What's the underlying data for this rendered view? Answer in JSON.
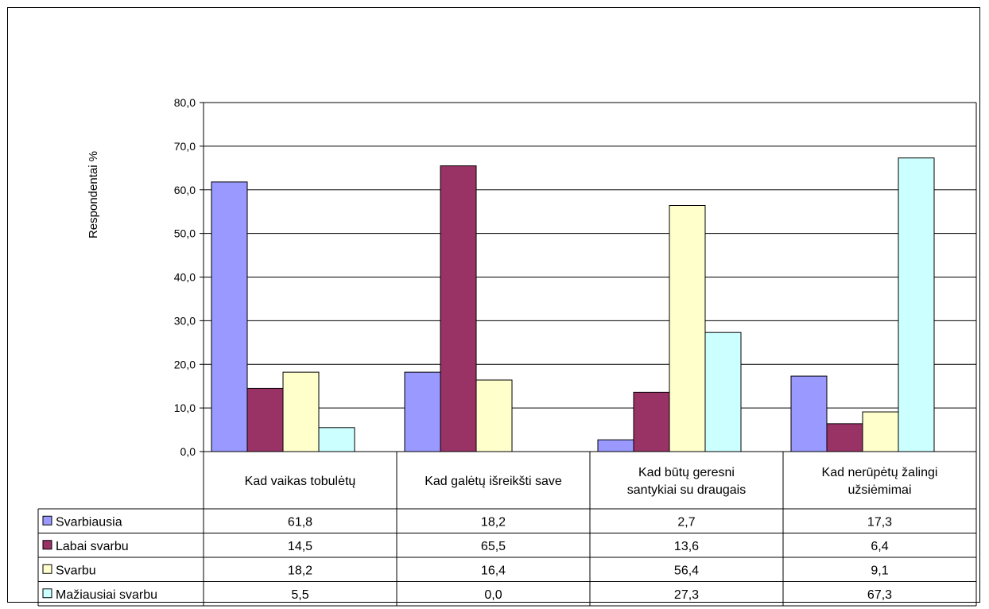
{
  "chart_data": {
    "type": "bar",
    "title": "",
    "xlabel": "",
    "ylabel": "Respondentai %",
    "ylim": [
      0,
      80
    ],
    "y_ticks": [
      "0,0",
      "10,0",
      "20,0",
      "30,0",
      "40,0",
      "50,0",
      "60,0",
      "70,0",
      "80,0"
    ],
    "grid": true,
    "legend": "data-table",
    "categories": [
      [
        "Kad vaikas tobulėtų"
      ],
      [
        "Kad galėtų išreikšti save"
      ],
      [
        "Kad būtų geresni",
        "santykiai su draugais"
      ],
      [
        "Kad nerūpėtų žalingi",
        "užsiėmimai"
      ]
    ],
    "series": [
      {
        "name": "Svarbiausia",
        "color": "#9999ff",
        "values": [
          61.8,
          18.2,
          2.7,
          17.3
        ],
        "labels": [
          "61,8",
          "18,2",
          "2,7",
          "17,3"
        ]
      },
      {
        "name": "Labai svarbu",
        "color": "#993366",
        "values": [
          14.5,
          65.5,
          13.6,
          6.4
        ],
        "labels": [
          "14,5",
          "65,5",
          "13,6",
          "6,4"
        ]
      },
      {
        "name": "Svarbu",
        "color": "#ffffcc",
        "values": [
          18.2,
          16.4,
          56.4,
          9.1
        ],
        "labels": [
          "18,2",
          "16,4",
          "56,4",
          "9,1"
        ]
      },
      {
        "name": "Mažiausiai svarbu",
        "color": "#ccffff",
        "values": [
          5.5,
          0.0,
          27.3,
          67.3
        ],
        "labels": [
          "5,5",
          "0,0",
          "27,3",
          "67,3"
        ]
      }
    ]
  }
}
